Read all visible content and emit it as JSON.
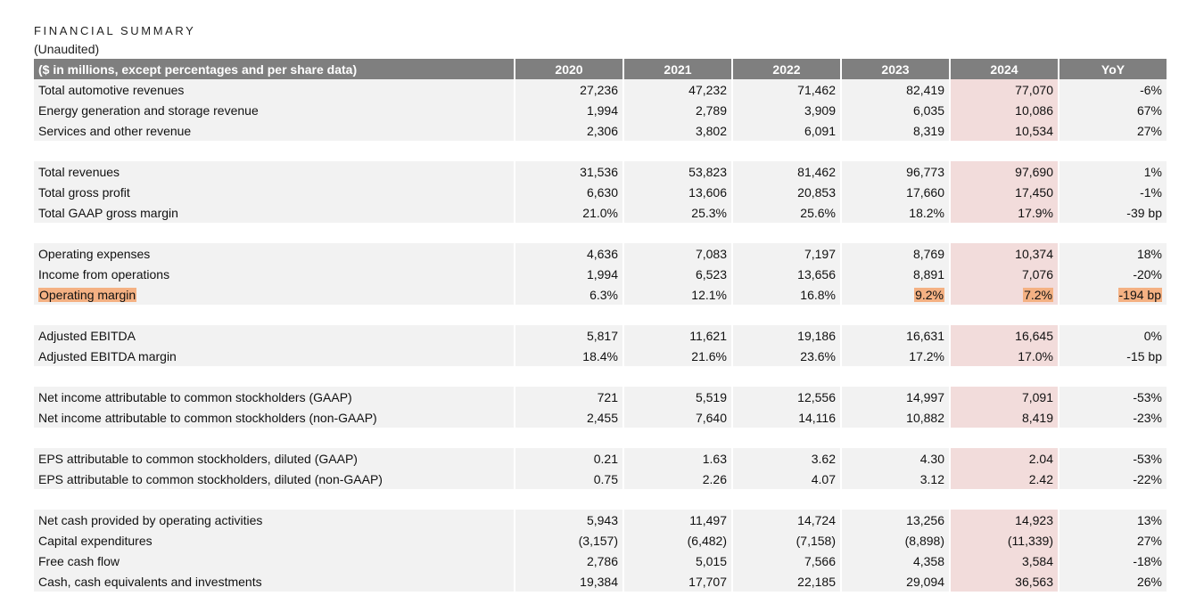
{
  "title": "FINANCIAL SUMMARY",
  "subtitle": "(Unaudited)",
  "table": {
    "headers": [
      "($ in millions, except percentages and per share data)",
      "2020",
      "2021",
      "2022",
      "2023",
      "2024",
      "YoY"
    ],
    "groups": [
      [
        {
          "label": "Total automotive revenues",
          "values": [
            "27,236",
            "47,232",
            "71,462",
            "82,419",
            "77,070",
            "-6%"
          ]
        },
        {
          "label": "Energy generation and storage revenue",
          "values": [
            "1,994",
            "2,789",
            "3,909",
            "6,035",
            "10,086",
            "67%"
          ]
        },
        {
          "label": "Services and other revenue",
          "values": [
            "2,306",
            "3,802",
            "6,091",
            "8,319",
            "10,534",
            "27%"
          ]
        }
      ],
      [
        {
          "label": "Total revenues",
          "values": [
            "31,536",
            "53,823",
            "81,462",
            "96,773",
            "97,690",
            "1%"
          ]
        },
        {
          "label": "Total gross profit",
          "values": [
            "6,630",
            "13,606",
            "20,853",
            "17,660",
            "17,450",
            "-1%"
          ]
        },
        {
          "label": "Total GAAP gross margin",
          "values": [
            "21.0%",
            "25.3%",
            "25.6%",
            "18.2%",
            "17.9%",
            "-39 bp"
          ]
        }
      ],
      [
        {
          "label": "Operating expenses",
          "values": [
            "4,636",
            "7,083",
            "7,197",
            "8,769",
            "10,374",
            "18%"
          ]
        },
        {
          "label": "Income from operations",
          "values": [
            "1,994",
            "6,523",
            "13,656",
            "8,891",
            "7,076",
            "-20%"
          ]
        },
        {
          "label": "Operating margin",
          "values": [
            "6.3%",
            "12.1%",
            "16.8%",
            "9.2%",
            "7.2%",
            "-194 bp"
          ],
          "highlight_label": true,
          "highlight_cols": [
            3,
            4,
            5
          ]
        }
      ],
      [
        {
          "label": "Adjusted EBITDA",
          "values": [
            "5,817",
            "11,621",
            "19,186",
            "16,631",
            "16,645",
            "0%"
          ]
        },
        {
          "label": "Adjusted EBITDA margin",
          "values": [
            "18.4%",
            "21.6%",
            "23.6%",
            "17.2%",
            "17.0%",
            "-15 bp"
          ]
        }
      ],
      [
        {
          "label": "Net income attributable to common stockholders (GAAP)",
          "values": [
            "721",
            "5,519",
            "12,556",
            "14,997",
            "7,091",
            "-53%"
          ]
        },
        {
          "label": "Net income attributable to common stockholders (non-GAAP)",
          "values": [
            "2,455",
            "7,640",
            "14,116",
            "10,882",
            "8,419",
            "-23%"
          ]
        }
      ],
      [
        {
          "label": "EPS attributable to common stockholders, diluted (GAAP)",
          "values": [
            "0.21",
            "1.63",
            "3.62",
            "4.30",
            "2.04",
            "-53%"
          ]
        },
        {
          "label": "EPS attributable to common stockholders, diluted (non-GAAP)",
          "values": [
            "0.75",
            "2.26",
            "4.07",
            "3.12",
            "2.42",
            "-22%"
          ]
        }
      ],
      [
        {
          "label": "Net cash provided by operating activities",
          "values": [
            "5,943",
            "11,497",
            "14,724",
            "13,256",
            "14,923",
            "13%"
          ]
        },
        {
          "label": "Capital expenditures",
          "values": [
            "(3,157)",
            "(6,482)",
            "(7,158)",
            "(8,898)",
            "(11,339)",
            "27%"
          ]
        },
        {
          "label": "Free cash flow",
          "values": [
            "2,786",
            "5,015",
            "7,566",
            "4,358",
            "3,584",
            "-18%"
          ]
        },
        {
          "label": "Cash, cash equivalents and investments",
          "values": [
            "19,384",
            "17,707",
            "22,185",
            "29,094",
            "36,563",
            "26%"
          ]
        }
      ]
    ]
  },
  "colors": {
    "header_bg": "#7f7f7f",
    "row_bg": "#f2f2f2",
    "current_year_bg": "#f2dcdb",
    "highlight": "#f4b183"
  }
}
